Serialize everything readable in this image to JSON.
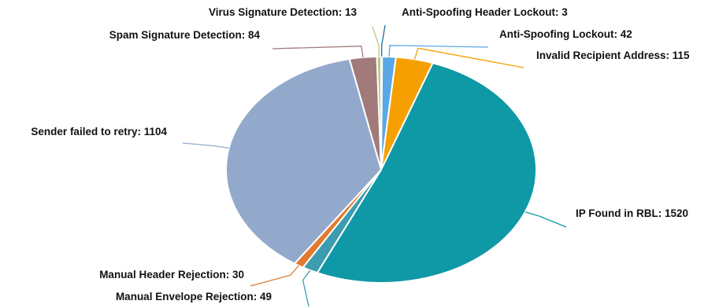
{
  "chart_data": {
    "type": "pie",
    "title": "",
    "slices": [
      {
        "name": "Anti-Spoofing Header Lockout",
        "value": 3,
        "label": "Anti-Spoofing Header Lockout: 3",
        "color": "#1f6e9c"
      },
      {
        "name": "Anti-Spoofing Lockout",
        "value": 42,
        "label": "Anti-Spoofing Lockout: 42",
        "color": "#5aa7e6"
      },
      {
        "name": "Invalid Recipient Address",
        "value": 115,
        "label": "Invalid Recipient Address: 115",
        "color": "#f5a000"
      },
      {
        "name": "IP Found in RBL",
        "value": 1520,
        "label": "IP Found in RBL: 1520",
        "color": "#0f98a6"
      },
      {
        "name": "Manual Envelope Rejection",
        "value": 49,
        "label": "Manual Envelope Rejection: 49",
        "color": "#3d9cb0"
      },
      {
        "name": "Manual Header Rejection",
        "value": 30,
        "label": "Manual Header Rejection: 30",
        "color": "#e07b2e"
      },
      {
        "name": "Sender failed to retry",
        "value": 1104,
        "label": "Sender failed to retry: 1104",
        "color": "#93a9cc"
      },
      {
        "name": "Spam Signature Detection",
        "value": 84,
        "label": "Spam Signature Detection: 84",
        "color": "#a07b7a"
      },
      {
        "name": "Virus Signature Detection",
        "value": 13,
        "label": "Virus Signature Detection: 13",
        "color": "#b5c98a"
      }
    ],
    "legend": "none"
  }
}
